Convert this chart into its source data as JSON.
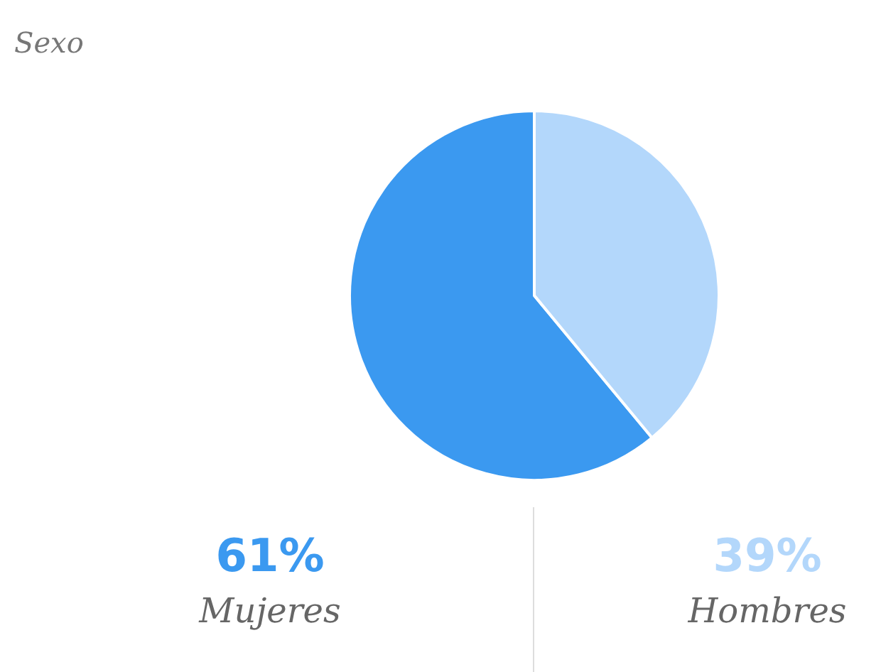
{
  "chart_data": {
    "type": "pie",
    "title": "Sexo",
    "categories": [
      "Mujeres",
      "Hombres"
    ],
    "values": [
      61,
      39
    ],
    "colors": [
      "#3b99f0",
      "#b3d7fb"
    ],
    "value_labels": [
      "61%",
      "39%"
    ]
  }
}
